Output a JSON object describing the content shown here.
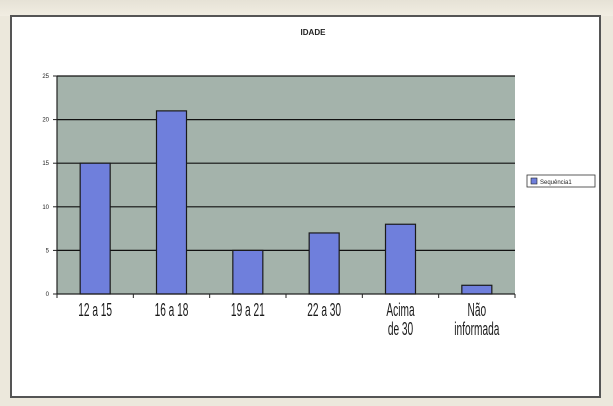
{
  "chart_data": {
    "type": "bar",
    "title": "IDADE",
    "categories": [
      "12 a 15",
      "16 a 18",
      "19 a 21",
      "22 a 30",
      "Acima de 30",
      "Não informada"
    ],
    "series": [
      {
        "name": "Sequência1",
        "values": [
          15,
          21,
          5,
          7,
          8,
          1
        ]
      }
    ],
    "ylim": [
      0,
      25
    ],
    "yticks": [
      0,
      5,
      10,
      15,
      20,
      25
    ],
    "grid": true,
    "legend": "right",
    "colors": {
      "bar": "#6f7fdc",
      "bar_stroke": "#1a1a1a",
      "plot_bg": "#a4b3ab",
      "gridline": "#111111"
    }
  }
}
